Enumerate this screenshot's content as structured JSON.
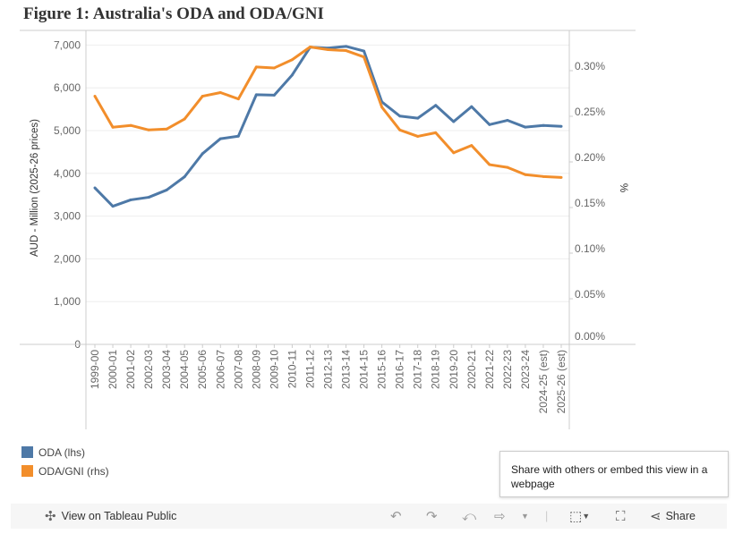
{
  "title": "Figure 1: Australia's ODA and ODA/GNI",
  "chart_data": {
    "type": "line",
    "title": "Figure 1: Australia's ODA and ODA/GNI",
    "categories": [
      "1999-00",
      "2000-01",
      "2001-02",
      "2002-03",
      "2003-04",
      "2004-05",
      "2005-06",
      "2006-07",
      "2007-08",
      "2008-09",
      "2009-10",
      "2010-11",
      "2011-12",
      "2012-13",
      "2013-14",
      "2014-15",
      "2015-16",
      "2016-17",
      "2017-18",
      "2018-19",
      "2019-20",
      "2020-21",
      "2021-22",
      "2022-23",
      "2023-24",
      "2024-25 (est)",
      "2025-26 (est)"
    ],
    "series": [
      {
        "name": "ODA (lhs)",
        "axis": "left",
        "color": "#4e79a7",
        "values": [
          3660,
          3230,
          3380,
          3440,
          3610,
          3920,
          4460,
          4810,
          4870,
          5840,
          5830,
          6300,
          6950,
          6930,
          6970,
          6860,
          5670,
          5340,
          5290,
          5590,
          5210,
          5560,
          5140,
          5240,
          5080,
          5120,
          5100
        ]
      },
      {
        "name": "ODA/GNI (rhs)",
        "axis": "right",
        "color": "#f28e2b",
        "values": [
          0.272,
          0.238,
          0.24,
          0.235,
          0.236,
          0.247,
          0.272,
          0.276,
          0.269,
          0.304,
          0.303,
          0.312,
          0.326,
          0.323,
          0.322,
          0.315,
          0.26,
          0.235,
          0.228,
          0.232,
          0.21,
          0.218,
          0.197,
          0.194,
          0.186,
          0.184,
          0.183
        ]
      }
    ],
    "ylabel": "AUD - Million (2025-26 prices)",
    "y2label": "%",
    "ylim": [
      0,
      7400
    ],
    "y2lim": [
      0,
      0.3775
    ],
    "yticks": [
      "0",
      "1,000",
      "2,000",
      "3,000",
      "4,000",
      "5,000",
      "6,000",
      "7,000"
    ],
    "y2ticks": [
      "0.00%",
      "0.05%",
      "0.10%",
      "0.15%",
      "0.20%",
      "0.25%",
      "0.30%"
    ],
    "grid": true,
    "legend": "bottom-left"
  },
  "legend": [
    {
      "label": "ODA (lhs)",
      "color": "#4e79a7"
    },
    {
      "label": "ODA/GNI (rhs)",
      "color": "#f28e2b"
    }
  ],
  "tooltip": "Share with others or embed this view in a webpage",
  "toolbar": {
    "view_label": "View on Tableau Public",
    "share_label": "Share"
  }
}
